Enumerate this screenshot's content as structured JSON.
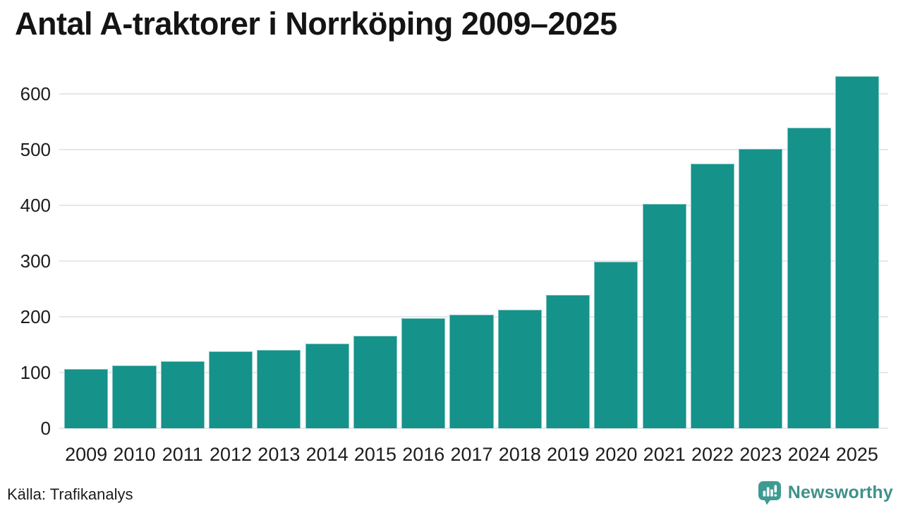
{
  "chart": {
    "title": "Antal A-traktorer i Norrköping 2009–2025"
  },
  "chart_data": {
    "type": "bar",
    "title": "Antal A-traktorer i Norrköping 2009–2025",
    "categories": [
      "2009",
      "2010",
      "2011",
      "2012",
      "2013",
      "2014",
      "2015",
      "2016",
      "2017",
      "2018",
      "2019",
      "2020",
      "2021",
      "2022",
      "2023",
      "2024",
      "2025"
    ],
    "values": [
      106,
      113,
      120,
      138,
      140,
      152,
      166,
      197,
      204,
      213,
      239,
      299,
      402,
      475,
      501,
      539,
      632
    ],
    "xlabel": "",
    "ylabel": "",
    "ylim": [
      0,
      650
    ],
    "yticks": [
      0,
      100,
      200,
      300,
      400,
      500,
      600
    ],
    "grid": true,
    "legend": false,
    "bar_color": "#15928a",
    "gridline_color": "#e7e7e9"
  },
  "footer": {
    "source": "Källa: Trafikanalys",
    "brand": "Newsworthy",
    "brand_color": "#3f918b",
    "logo_icon_color": "#3e9b93",
    "logo_icon": "speech-bubble-bar-chart-icon"
  }
}
